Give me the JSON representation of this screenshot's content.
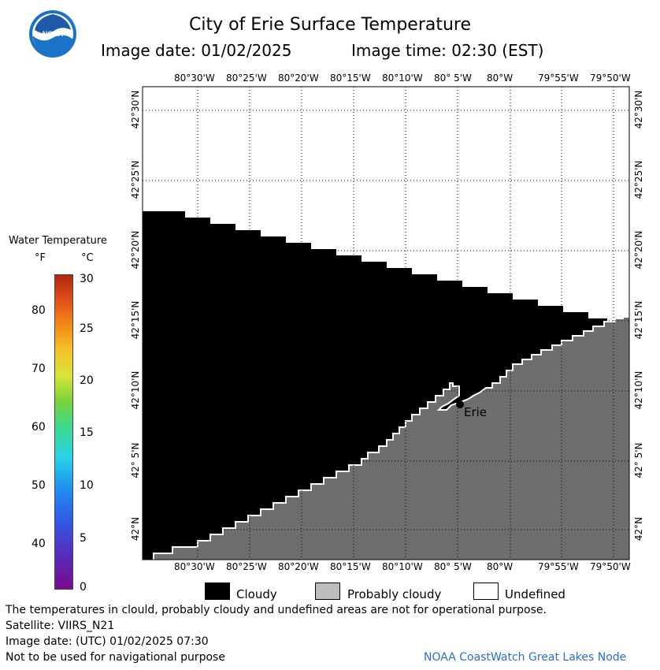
{
  "header": {
    "title": "City of Erie Surface Temperature",
    "image_date_label": "Image date: 01/02/2025",
    "image_time_label": "Image time: 02:30 (EST)"
  },
  "logo": {
    "text": "NOAA"
  },
  "colorbar": {
    "title": "Water Temperature",
    "unit_f": "°F",
    "unit_c": "°C",
    "f_ticks": [
      "80",
      "70",
      "60",
      "50",
      "40"
    ],
    "c_ticks": [
      "30",
      "25",
      "20",
      "15",
      "10",
      "5",
      "0"
    ]
  },
  "map": {
    "lon_labels": [
      "80°30'W",
      "80°25'W",
      "80°20'W",
      "80°15'W",
      "80°10'W",
      "80° 5'W",
      "80°W",
      "79°55'W",
      "79°50'W"
    ],
    "lon_labels_top": [
      "80°30'W",
      "80°25'W",
      "80°20'W",
      "80°15'W",
      "80°10'W",
      "80° 5'W",
      "80°W",
      "79°55'W",
      "79°50'W"
    ],
    "lat_labels": [
      "42°30'N",
      "42°25'N",
      "42°20'N",
      "42°15'N",
      "42°10'N",
      "42° 5'N",
      "42°N"
    ],
    "city_label": "Erie",
    "colors": {
      "cloudy": "#000000",
      "probably_cloudy": "#6e6e6e",
      "undefined": "#ffffff",
      "coast": "#ffffff"
    }
  },
  "legend": {
    "cloudy": "Cloudy",
    "probably_cloudy": "Probably cloudy",
    "undefined": "Undefined"
  },
  "footer": {
    "disclaimer": "The temperatures in clould, probably cloudy and undefined areas are not for operational purpose.",
    "satellite": "Satellite: VIIRS_N21",
    "utc_date": "Image date: (UTC) 01/02/2025  07:30",
    "nav_warning": "Not to be used for navigational purpose",
    "credit": "NOAA CoastWatch Great Lakes Node"
  }
}
